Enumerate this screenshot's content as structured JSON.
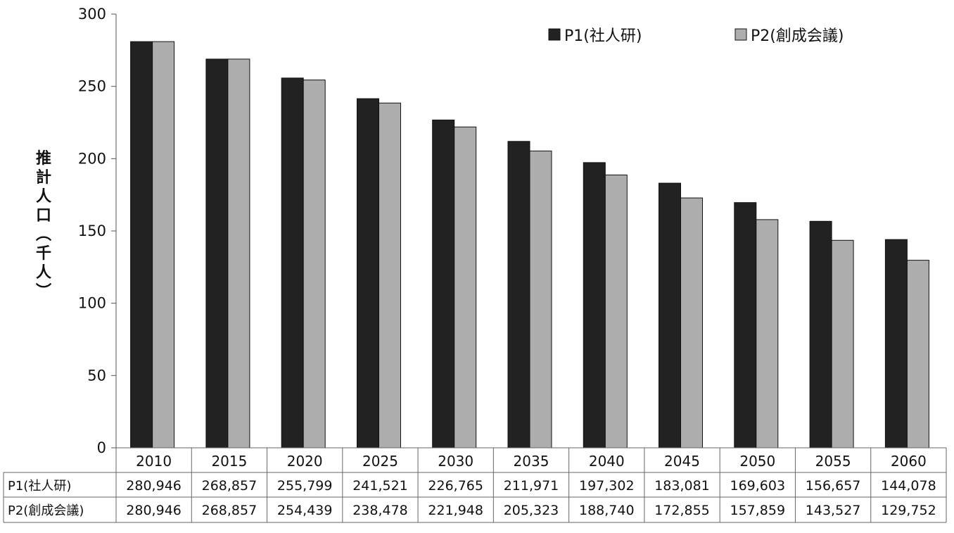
{
  "chart_data": {
    "type": "bar",
    "categories": [
      "2010",
      "2015",
      "2020",
      "2025",
      "2030",
      "2035",
      "2040",
      "2045",
      "2050",
      "2055",
      "2060"
    ],
    "series": [
      {
        "name": "P1(社人研)",
        "color": "#222222",
        "values": [
          280946,
          268857,
          255799,
          241521,
          226765,
          211971,
          197302,
          183081,
          169603,
          156657,
          144078
        ],
        "labels": [
          "280,946",
          "268,857",
          "255,799",
          "241,521",
          "226,765",
          "211,971",
          "197,302",
          "183,081",
          "169,603",
          "156,657",
          "144,078"
        ]
      },
      {
        "name": "P2(創成会議)",
        "color": "#adadad",
        "values": [
          280946,
          268857,
          254439,
          238478,
          221948,
          205323,
          188740,
          172855,
          157859,
          143527,
          129752
        ],
        "labels": [
          "280,946",
          "268,857",
          "254,439",
          "238,478",
          "221,948",
          "205,323",
          "188,740",
          "172,855",
          "157,859",
          "143,527",
          "129,752"
        ]
      }
    ],
    "ylabel": "推計人口（千人）",
    "yticks": [
      "0",
      "50",
      "100",
      "150",
      "200",
      "250",
      "300"
    ],
    "ylim": [
      0,
      300
    ],
    "value_scale": 0.001,
    "legend_position": "top-right",
    "grid": false,
    "data_table": true
  }
}
